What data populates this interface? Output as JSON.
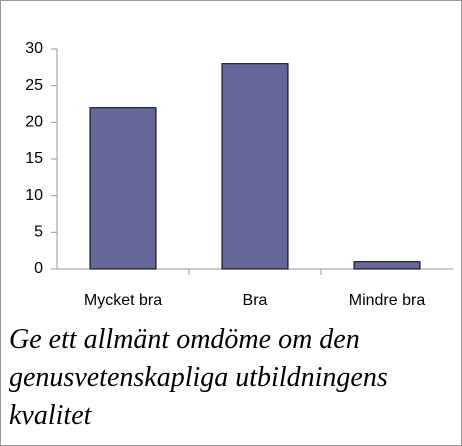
{
  "chart_data": {
    "type": "bar",
    "title": "Ge ett allmänt omdöme om den genusvetenskapliga utbildningens kvalitet",
    "categories": [
      "Mycket bra",
      "Bra",
      "Mindre bra"
    ],
    "values": [
      22,
      28,
      1
    ],
    "color": "#666699",
    "ylim": [
      0,
      30
    ],
    "yticks": [
      0,
      5,
      10,
      15,
      20,
      25,
      30
    ],
    "grid": false
  }
}
